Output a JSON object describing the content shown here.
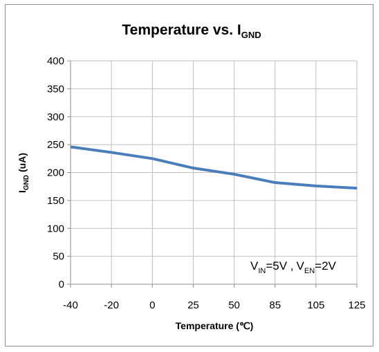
{
  "chart_data": {
    "type": "line",
    "title": {
      "main": "Temperature  vs.  I",
      "sub": "GND"
    },
    "xlabel": "Temperature (℃)",
    "ylabel": {
      "main": "I",
      "sub": "GND",
      "rest": " (uA)"
    },
    "categories": [
      "-40",
      "-20",
      "0",
      "25",
      "50",
      "85",
      "105",
      "125"
    ],
    "ylim": [
      0,
      400
    ],
    "yticks": [
      0,
      50,
      100,
      150,
      200,
      250,
      300,
      350,
      400
    ],
    "grid": true,
    "series": [
      {
        "values": [
          246,
          236,
          225,
          208,
          197,
          182,
          176,
          172
        ],
        "color": "#4a7ebb"
      }
    ],
    "annotation": {
      "v1": "V",
      "v1_sub": "IN",
      "v1_rest": "=5V ,",
      "v2": "V",
      "v2_sub": "EN",
      "v2_rest": "=2V"
    }
  }
}
